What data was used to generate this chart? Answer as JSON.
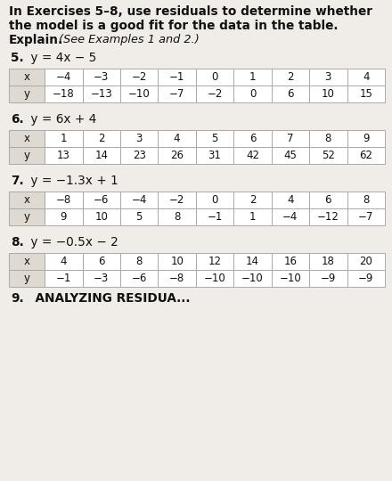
{
  "header_line1": "In Exercises 5–8, use residuals to determine whether",
  "header_line2": "the model is a good fit for the data in the table.",
  "header_line3_bold": "Explain.",
  "header_line3_italic": " (See Examples 1 and 2.)",
  "exercises": [
    {
      "number": "5.",
      "equation": " y = 4x − 5",
      "table": {
        "headers": [
          "x",
          "−4",
          "−3",
          "−2",
          "−1",
          "0",
          "1",
          "2",
          "3",
          "4"
        ],
        "row2": [
          "y",
          "−18",
          "−13",
          "−10",
          "−7",
          "−2",
          "0",
          "6",
          "10",
          "15"
        ]
      }
    },
    {
      "number": "6.",
      "equation": " y = 6x + 4",
      "table": {
        "headers": [
          "x",
          "1",
          "2",
          "3",
          "4",
          "5",
          "6",
          "7",
          "8",
          "9"
        ],
        "row2": [
          "y",
          "13",
          "14",
          "23",
          "26",
          "31",
          "42",
          "45",
          "52",
          "62"
        ]
      }
    },
    {
      "number": "7.",
      "equation": " y = −1.3x + 1",
      "table": {
        "headers": [
          "x",
          "−8",
          "−6",
          "−4",
          "−2",
          "0",
          "2",
          "4",
          "6",
          "8"
        ],
        "row2": [
          "y",
          "9",
          "10",
          "5",
          "8",
          "−1",
          "1",
          "−4",
          "−12",
          "−7"
        ]
      }
    },
    {
      "number": "8.",
      "equation": " y = −0.5x − 2",
      "table": {
        "headers": [
          "x",
          "4",
          "6",
          "8",
          "10",
          "12",
          "14",
          "16",
          "18",
          "20"
        ],
        "row2": [
          "y",
          "−1",
          "−3",
          "−6",
          "−8",
          "−10",
          "−10",
          "−10",
          "−9",
          "−9"
        ]
      }
    }
  ],
  "footer_bold": "9.",
  "footer_rest": "  ANALYZING RESIDUA...",
  "bg_color": "#f0ede8",
  "table_header_bg": "#dedad2",
  "table_cell_bg": "#ffffff",
  "border_color": "#aaaaaa",
  "text_color": "#111111"
}
